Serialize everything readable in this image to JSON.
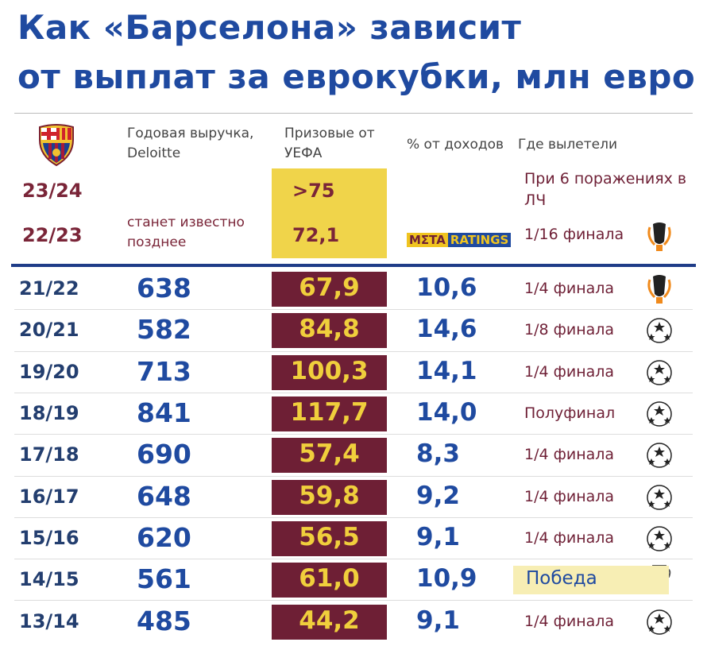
{
  "header": {
    "title_lines": [
      "Как «Барселона» зависит",
      "от выплат за еврокубки, млн евро"
    ]
  },
  "columns": [
    "Годовая выручка, Deloitte",
    "Призовые от УЕФА",
    "% от доходов",
    "Где вылетели"
  ],
  "upcoming": {
    "note": "станет известно позднее",
    "rows": [
      {
        "season": "23/24",
        "prize": ">75",
        "stage": "При 6 поражениях в ЛЧ"
      },
      {
        "season": "22/23",
        "prize": "72,1",
        "stage": "1/16 финала"
      }
    ]
  },
  "brand": {
    "left": "MΣTA",
    "right": "RATINGS"
  },
  "table": {
    "rows": [
      {
        "season": "21/22",
        "revenue": "638",
        "prize": "67,9",
        "share": "10,6",
        "stage": "1/4 финала"
      },
      {
        "season": "20/21",
        "revenue": "582",
        "prize": "84,8",
        "share": "14,6",
        "stage": "1/8 финала"
      },
      {
        "season": "19/20",
        "revenue": "713",
        "prize": "100,3",
        "share": "14,1",
        "stage": "1/4 финала"
      },
      {
        "season": "18/19",
        "revenue": "841",
        "prize": "117,7",
        "share": "14,0",
        "stage": "Полуфинал"
      },
      {
        "season": "17/18",
        "revenue": "690",
        "prize": "57,4",
        "share": "8,3",
        "stage": "1/4 финала"
      },
      {
        "season": "16/17",
        "revenue": "648",
        "prize": "59,8",
        "share": "9,2",
        "stage": "1/4 финала"
      },
      {
        "season": "15/16",
        "revenue": "620",
        "prize": "56,5",
        "share": "9,1",
        "stage": "1/4 финала"
      },
      {
        "season": "14/15",
        "revenue": "561",
        "prize": "61,0",
        "share": "10,9",
        "stage": "Победа"
      },
      {
        "season": "13/14",
        "revenue": "485",
        "prize": "44,2",
        "share": "9,1",
        "stage": "1/4 финала"
      }
    ]
  }
}
